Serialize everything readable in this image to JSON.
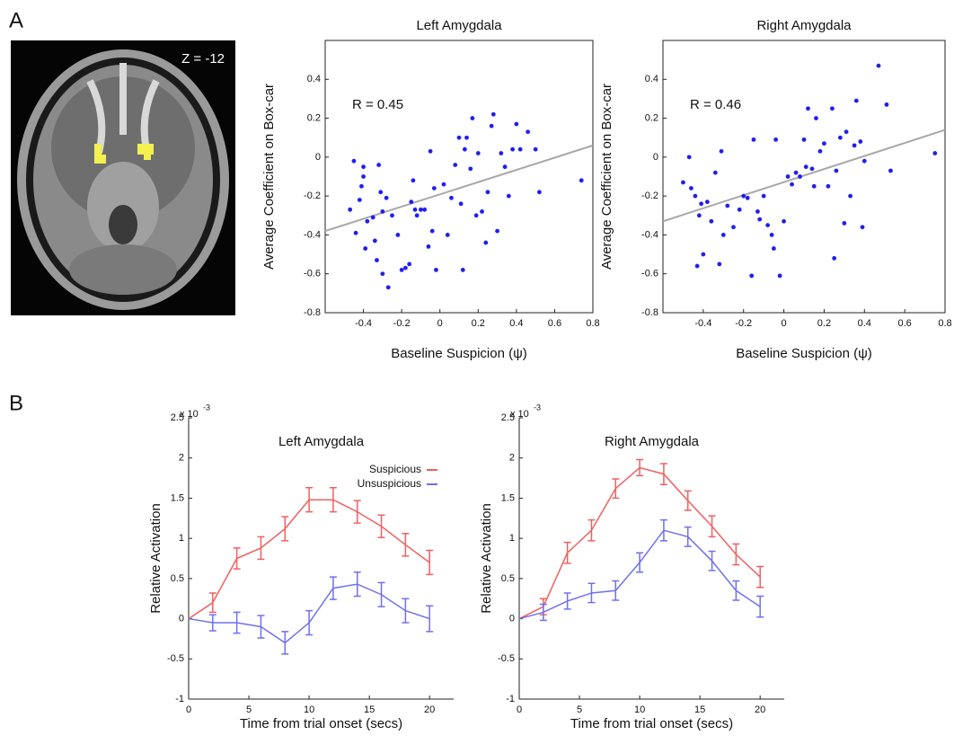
{
  "panels": [
    {
      "label": "A"
    },
    {
      "label": "B"
    }
  ],
  "brain_image": {
    "label": "Z = -12"
  },
  "chart_data": [
    {
      "type": "scatter",
      "title": "Left Amygdala",
      "xlabel": "Baseline Suspicion (ψ)",
      "ylabel": "Average Coefficient on Box-car",
      "annotation": "R = 0.45",
      "color": "#1f1ff0",
      "fit_color": "#a8a8a8",
      "xlim": [
        -0.6,
        0.8
      ],
      "ylim": [
        -0.8,
        0.6
      ],
      "xticks": [
        -0.4,
        -0.2,
        0,
        0.2,
        0.4,
        0.6,
        0.8
      ],
      "yticks": [
        -0.8,
        -0.6,
        -0.4,
        -0.2,
        0,
        0.2,
        0.4
      ],
      "x": [
        -0.47,
        -0.45,
        -0.44,
        -0.42,
        -0.41,
        -0.4,
        -0.4,
        -0.39,
        -0.38,
        -0.35,
        -0.34,
        -0.33,
        -0.32,
        -0.31,
        -0.3,
        -0.3,
        -0.28,
        -0.27,
        -0.25,
        -0.22,
        -0.2,
        -0.18,
        -0.16,
        -0.15,
        -0.14,
        -0.13,
        -0.12,
        -0.1,
        -0.08,
        -0.06,
        -0.05,
        -0.04,
        -0.03,
        -0.02,
        0.02,
        0.04,
        0.06,
        0.08,
        0.1,
        0.11,
        0.12,
        0.13,
        0.14,
        0.16,
        0.17,
        0.19,
        0.2,
        0.22,
        0.24,
        0.25,
        0.27,
        0.28,
        0.3,
        0.32,
        0.34,
        0.36,
        0.38,
        0.4,
        0.42,
        0.46,
        0.5,
        0.52,
        0.74
      ],
      "values": [
        -0.27,
        -0.02,
        -0.39,
        -0.22,
        -0.15,
        -0.1,
        -0.05,
        -0.47,
        -0.33,
        -0.31,
        -0.43,
        -0.53,
        -0.04,
        -0.18,
        -0.6,
        -0.28,
        -0.21,
        -0.67,
        -0.3,
        -0.4,
        -0.58,
        -0.57,
        -0.55,
        -0.23,
        -0.12,
        -0.27,
        -0.3,
        -0.27,
        -0.27,
        -0.46,
        0.03,
        -0.38,
        -0.16,
        -0.58,
        -0.14,
        -0.4,
        -0.21,
        -0.04,
        0.1,
        -0.24,
        -0.58,
        0.04,
        0.1,
        -0.06,
        0.2,
        -0.3,
        0.02,
        -0.28,
        -0.44,
        -0.18,
        0.16,
        0.22,
        -0.38,
        0.02,
        -0.05,
        -0.2,
        0.04,
        0.17,
        0.04,
        0.13,
        0.04,
        -0.18,
        -0.12
      ],
      "fit_line": {
        "x": [
          -0.6,
          0.8
        ],
        "values": [
          -0.38,
          0.06
        ]
      }
    },
    {
      "type": "scatter",
      "title": "Right Amygdala",
      "xlabel": "Baseline Suspicion (ψ)",
      "ylabel": "Average Coefficient on Box-car",
      "annotation": "R = 0.46",
      "color": "#1f1ff0",
      "fit_color": "#a8a8a8",
      "xlim": [
        -0.6,
        0.8
      ],
      "ylim": [
        -0.8,
        0.6
      ],
      "xticks": [
        -0.4,
        -0.2,
        0,
        0.2,
        0.4,
        0.6,
        0.8
      ],
      "yticks": [
        -0.8,
        -0.6,
        -0.4,
        -0.2,
        0,
        0.2,
        0.4
      ],
      "x": [
        -0.5,
        -0.47,
        -0.46,
        -0.44,
        -0.43,
        -0.42,
        -0.41,
        -0.4,
        -0.38,
        -0.36,
        -0.34,
        -0.32,
        -0.31,
        -0.3,
        -0.28,
        -0.25,
        -0.22,
        -0.2,
        -0.18,
        -0.16,
        -0.15,
        -0.13,
        -0.12,
        -0.1,
        -0.08,
        -0.06,
        -0.05,
        -0.04,
        -0.02,
        0,
        0.02,
        0.04,
        0.06,
        0.08,
        0.1,
        0.11,
        0.12,
        0.14,
        0.15,
        0.16,
        0.18,
        0.2,
        0.22,
        0.24,
        0.25,
        0.26,
        0.28,
        0.3,
        0.31,
        0.33,
        0.35,
        0.36,
        0.38,
        0.39,
        0.4,
        0.47,
        0.51,
        0.53,
        0.75
      ],
      "values": [
        -0.13,
        0,
        -0.16,
        -0.2,
        -0.56,
        -0.3,
        -0.24,
        -0.5,
        -0.23,
        -0.33,
        -0.08,
        -0.55,
        0.03,
        -0.4,
        -0.25,
        -0.36,
        -0.27,
        -0.2,
        -0.21,
        -0.61,
        0.09,
        -0.28,
        -0.32,
        -0.2,
        -0.35,
        -0.4,
        -0.47,
        0.09,
        -0.61,
        -0.33,
        -0.1,
        -0.14,
        -0.08,
        -0.1,
        0.09,
        -0.05,
        0.25,
        -0.06,
        -0.15,
        0.2,
        0.03,
        0.07,
        -0.15,
        0.25,
        -0.52,
        -0.07,
        0.1,
        -0.34,
        0.13,
        -0.2,
        0.06,
        0.29,
        0.08,
        -0.36,
        -0.02,
        0.47,
        0.27,
        -0.07,
        0.02
      ],
      "fit_line": {
        "x": [
          -0.6,
          0.8
        ],
        "values": [
          -0.33,
          0.14
        ]
      }
    },
    {
      "type": "line",
      "title": "Left Amygdala",
      "xlabel": "Time from trial onset (secs)",
      "ylabel": "Relative Activation",
      "y_scale_label": "x 10",
      "y_scale_exponent": "-3",
      "legend": "upper right",
      "xlim": [
        0,
        22
      ],
      "ylim": [
        -1,
        2.5
      ],
      "xticks": [
        0,
        5,
        10,
        15,
        20
      ],
      "yticks": [
        -1,
        -0.5,
        0,
        0.5,
        1,
        1.5,
        2,
        2.5
      ],
      "x": [
        0,
        2,
        4,
        6,
        8,
        10,
        12,
        14,
        16,
        18,
        20
      ],
      "series": [
        {
          "name": "Suspicious",
          "color": "#f06060",
          "values": [
            0,
            0.2,
            0.75,
            0.88,
            1.12,
            1.48,
            1.48,
            1.33,
            1.15,
            0.92,
            0.7
          ],
          "errors": [
            null,
            0.12,
            0.13,
            0.14,
            0.15,
            0.15,
            0.15,
            0.14,
            0.14,
            0.14,
            0.15
          ]
        },
        {
          "name": "Unsuspicious",
          "color": "#7070f0",
          "values": [
            0,
            -0.05,
            -0.05,
            -0.1,
            -0.3,
            -0.05,
            0.38,
            0.43,
            0.3,
            0.1,
            0
          ],
          "errors": [
            null,
            0.1,
            0.13,
            0.14,
            0.14,
            0.15,
            0.14,
            0.15,
            0.15,
            0.15,
            0.16
          ]
        }
      ]
    },
    {
      "type": "line",
      "title": "Right Amygdala",
      "xlabel": "Time from trial onset (secs)",
      "ylabel": "Relative Activation",
      "y_scale_label": "x 10",
      "y_scale_exponent": "-3",
      "xlim": [
        0,
        22
      ],
      "ylim": [
        -1,
        2.5
      ],
      "xticks": [
        0,
        5,
        10,
        15,
        20
      ],
      "yticks": [
        -1,
        -0.5,
        0,
        0.5,
        1,
        1.5,
        2,
        2.5
      ],
      "x": [
        0,
        2,
        4,
        6,
        8,
        10,
        12,
        14,
        16,
        18,
        20
      ],
      "series": [
        {
          "color": "#f06060",
          "values": [
            0,
            0.15,
            0.82,
            1.1,
            1.62,
            1.88,
            1.8,
            1.47,
            1.15,
            0.8,
            0.52
          ],
          "errors": [
            null,
            0.1,
            0.13,
            0.13,
            0.12,
            0.1,
            0.13,
            0.12,
            0.13,
            0.13,
            0.13
          ]
        },
        {
          "color": "#7070f0",
          "values": [
            0,
            0.08,
            0.22,
            0.32,
            0.35,
            0.7,
            1.1,
            1.02,
            0.72,
            0.35,
            0.15
          ],
          "errors": [
            null,
            0.1,
            0.1,
            0.12,
            0.12,
            0.12,
            0.13,
            0.12,
            0.12,
            0.12,
            0.13
          ]
        }
      ]
    }
  ]
}
